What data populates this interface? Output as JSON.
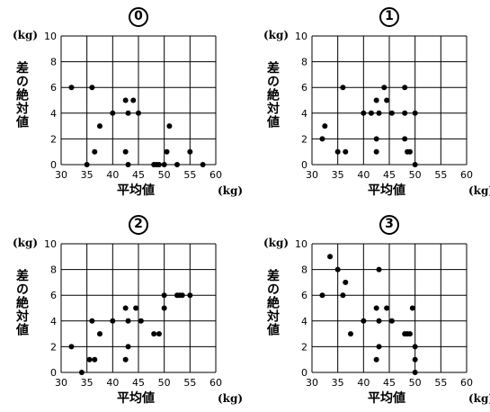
{
  "chart_data": [
    {
      "type": "scatter",
      "title": "0",
      "xlabel": "平均値",
      "ylabel": "差の絶対値",
      "x_unit": "(kg)",
      "y_unit": "(kg)",
      "xlim": [
        30,
        60
      ],
      "ylim": [
        0,
        10
      ],
      "xticks": [
        30,
        35,
        40,
        45,
        50,
        55,
        60
      ],
      "yticks": [
        0,
        2,
        4,
        6,
        8,
        10
      ],
      "grid": true,
      "points": [
        [
          32,
          6
        ],
        [
          35,
          0
        ],
        [
          36,
          6
        ],
        [
          36.5,
          1
        ],
        [
          37.5,
          3
        ],
        [
          40,
          4
        ],
        [
          42.5,
          5
        ],
        [
          42.5,
          1
        ],
        [
          43,
          4
        ],
        [
          43,
          0
        ],
        [
          44,
          5
        ],
        [
          45,
          4
        ],
        [
          48,
          0
        ],
        [
          48.5,
          0
        ],
        [
          49,
          0
        ],
        [
          50,
          0
        ],
        [
          50.5,
          1
        ],
        [
          51,
          3
        ],
        [
          52.5,
          0
        ],
        [
          55,
          1
        ],
        [
          57.5,
          0
        ]
      ]
    },
    {
      "type": "scatter",
      "title": "1",
      "xlabel": "平均値",
      "ylabel": "差の絶対値",
      "x_unit": "(kg)",
      "y_unit": "(kg)",
      "xlim": [
        30,
        60
      ],
      "ylim": [
        0,
        10
      ],
      "xticks": [
        30,
        35,
        40,
        45,
        50,
        55,
        60
      ],
      "yticks": [
        0,
        2,
        4,
        6,
        8,
        10
      ],
      "grid": true,
      "points": [
        [
          32,
          2
        ],
        [
          32.5,
          3
        ],
        [
          35,
          1
        ],
        [
          36,
          6
        ],
        [
          36.5,
          1
        ],
        [
          40,
          4
        ],
        [
          41.5,
          4
        ],
        [
          42.5,
          5
        ],
        [
          42.5,
          2
        ],
        [
          42.5,
          1
        ],
        [
          43,
          4
        ],
        [
          44,
          6
        ],
        [
          44.5,
          5
        ],
        [
          45.5,
          4
        ],
        [
          48,
          6
        ],
        [
          48,
          4
        ],
        [
          48,
          2
        ],
        [
          48.5,
          1
        ],
        [
          49,
          1
        ],
        [
          50,
          4
        ],
        [
          50,
          0
        ]
      ]
    },
    {
      "type": "scatter",
      "title": "2",
      "xlabel": "平均値",
      "ylabel": "差の絶対値",
      "x_unit": "(kg)",
      "y_unit": "(kg)",
      "xlim": [
        30,
        60
      ],
      "ylim": [
        0,
        10
      ],
      "xticks": [
        30,
        35,
        40,
        45,
        50,
        55,
        60
      ],
      "yticks": [
        0,
        2,
        4,
        6,
        8,
        10
      ],
      "grid": true,
      "points": [
        [
          32,
          2
        ],
        [
          34,
          0
        ],
        [
          35.5,
          1
        ],
        [
          36,
          4
        ],
        [
          36.5,
          1
        ],
        [
          37.5,
          3
        ],
        [
          40,
          4
        ],
        [
          42.5,
          5
        ],
        [
          42.5,
          1
        ],
        [
          43,
          4
        ],
        [
          43,
          2
        ],
        [
          44.5,
          5
        ],
        [
          45.5,
          4
        ],
        [
          48,
          3
        ],
        [
          49,
          3
        ],
        [
          50,
          6
        ],
        [
          50,
          5
        ],
        [
          52.5,
          6
        ],
        [
          53,
          6
        ],
        [
          53.5,
          6
        ],
        [
          55,
          6
        ]
      ]
    },
    {
      "type": "scatter",
      "title": "3",
      "xlabel": "平均値",
      "ylabel": "差の絶対値",
      "x_unit": "(kg)",
      "y_unit": "(kg)",
      "xlim": [
        30,
        60
      ],
      "ylim": [
        0,
        10
      ],
      "xticks": [
        30,
        35,
        40,
        45,
        50,
        55,
        60
      ],
      "yticks": [
        0,
        2,
        4,
        6,
        8,
        10
      ],
      "grid": true,
      "points": [
        [
          32,
          6
        ],
        [
          33.5,
          9
        ],
        [
          35,
          8
        ],
        [
          36,
          6
        ],
        [
          36.5,
          7
        ],
        [
          37.5,
          3
        ],
        [
          40,
          4
        ],
        [
          42.5,
          5
        ],
        [
          42.5,
          1
        ],
        [
          43,
          8
        ],
        [
          43,
          4
        ],
        [
          43,
          2
        ],
        [
          44.5,
          5
        ],
        [
          45.5,
          4
        ],
        [
          48,
          3
        ],
        [
          48.5,
          3
        ],
        [
          49,
          3
        ],
        [
          49.5,
          5
        ],
        [
          50,
          2
        ],
        [
          50,
          1
        ],
        [
          50,
          0
        ]
      ]
    }
  ]
}
